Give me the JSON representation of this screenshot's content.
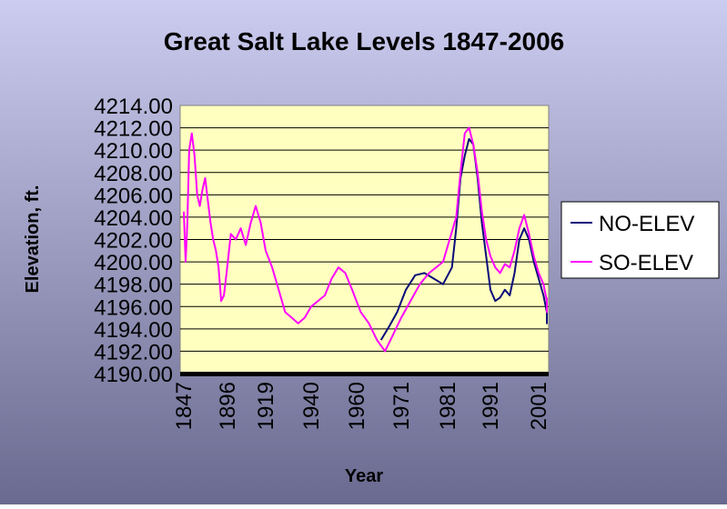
{
  "chart_data": {
    "type": "line",
    "title": "Great Salt Lake Levels 1847-2006",
    "xlabel": "Year",
    "ylabel": "Elevation, ft.",
    "ylim": [
      4190,
      4214
    ],
    "y_ticks": [
      "4190.00",
      "4192.00",
      "4194.00",
      "4196.00",
      "4198.00",
      "4200.00",
      "4202.00",
      "4204.00",
      "4206.00",
      "4208.00",
      "4210.00",
      "4212.00",
      "4214.00"
    ],
    "x_ticks": [
      "1847",
      "1896",
      "1919",
      "1940",
      "1960",
      "1971",
      "1981",
      "1991",
      "2001"
    ],
    "grid": true,
    "legend_position": "right",
    "colors": {
      "background_top": "#ccccf0",
      "background_bottom": "#6a6a90",
      "plot_area": "#ffffc0",
      "no_elev": "#0a0a7a",
      "so_elev": "#ff00ff"
    },
    "series": [
      {
        "name": "NO-ELEV",
        "x": [
          1966,
          1968,
          1970,
          1972,
          1974,
          1976,
          1978,
          1980,
          1982,
          1983,
          1984,
          1985,
          1986,
          1987,
          1988,
          1989,
          1990,
          1991,
          1992,
          1993,
          1994,
          1995,
          1996,
          1997,
          1998,
          1999,
          2000,
          2001,
          2002,
          2003,
          2004,
          2005,
          2006
        ],
        "y": [
          4193.0,
          4194.2,
          4195.5,
          4197.5,
          4198.8,
          4199.0,
          4198.5,
          4198.0,
          4199.5,
          4203.0,
          4207.5,
          4209.5,
          4211.0,
          4210.5,
          4207.5,
          4203.5,
          4200.5,
          4197.5,
          4196.5,
          4196.8,
          4197.5,
          4197.0,
          4199.0,
          4202.0,
          4203.0,
          4202.0,
          4200.0,
          4198.5,
          4197.0,
          4195.5,
          4194.5,
          4195.0,
          4195.3
        ]
      },
      {
        "name": "SO-ELEV",
        "x": [
          1847,
          1849,
          1851,
          1853,
          1856,
          1859,
          1862,
          1865,
          1868,
          1871,
          1874,
          1877,
          1880,
          1883,
          1886,
          1889,
          1892,
          1895,
          1898,
          1901,
          1904,
          1907,
          1910,
          1913,
          1916,
          1919,
          1922,
          1925,
          1928,
          1931,
          1934,
          1937,
          1940,
          1943,
          1946,
          1949,
          1952,
          1955,
          1958,
          1961,
          1963,
          1965,
          1967,
          1969,
          1971,
          1973,
          1975,
          1977,
          1980,
          1983,
          1984,
          1985,
          1986,
          1987,
          1988,
          1989,
          1990,
          1991,
          1992,
          1993,
          1994,
          1995,
          1996,
          1997,
          1998,
          1999,
          2000,
          2001,
          2002,
          2003,
          2004,
          2005,
          2006
        ],
        "y": [
          4204.5,
          4200.0,
          4203.5,
          4210.0,
          4211.5,
          4209.5,
          4206.0,
          4205.0,
          4206.5,
          4207.5,
          4205.5,
          4203.5,
          4202.0,
          4201.0,
          4199.5,
          4196.5,
          4197.0,
          4199.0,
          4202.5,
          4202.0,
          4203.0,
          4201.5,
          4203.5,
          4205.0,
          4203.5,
          4201.0,
          4199.5,
          4197.5,
          4195.5,
          4195.0,
          4194.5,
          4195.0,
          4196.0,
          4196.5,
          4197.0,
          4198.5,
          4199.5,
          4199.0,
          4197.5,
          4195.5,
          4194.5,
          4193.0,
          4192.0,
          4193.5,
          4195.0,
          4196.5,
          4198.0,
          4199.0,
          4200.0,
          4204.0,
          4208.0,
          4211.5,
          4212.0,
          4210.5,
          4208.0,
          4204.5,
          4202.0,
          4200.5,
          4199.5,
          4199.0,
          4199.8,
          4199.5,
          4201.0,
          4203.0,
          4204.2,
          4202.5,
          4200.5,
          4199.0,
          4198.0,
          4196.5,
          4195.5,
          4196.0,
          4196.8
        ]
      }
    ]
  }
}
